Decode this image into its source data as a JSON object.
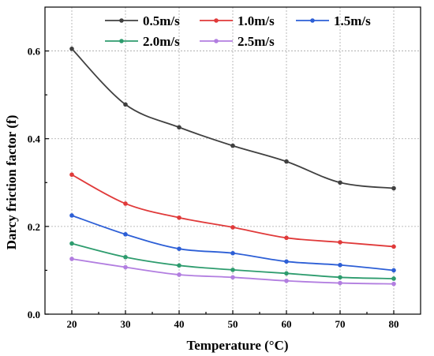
{
  "chart_data": {
    "type": "line",
    "title": "",
    "xlabel": "Temperature (°C)",
    "ylabel": "Darcy friction factor (f)",
    "x": [
      20,
      30,
      40,
      50,
      60,
      70,
      80
    ],
    "xlim": [
      15,
      85
    ],
    "ylim": [
      0,
      0.7
    ],
    "xticks": [
      20,
      30,
      40,
      50,
      60,
      70,
      80
    ],
    "yticks": [
      0.0,
      0.2,
      0.4,
      0.6
    ],
    "ytick_labels": [
      "0.0",
      "0.2",
      "0.4",
      "0.6"
    ],
    "grid": true,
    "legend_position": "top",
    "series": [
      {
        "name": "0.5m/s",
        "color": "#404040",
        "values": [
          0.605,
          0.478,
          0.426,
          0.384,
          0.348,
          0.3,
          0.287
        ]
      },
      {
        "name": "1.0m/s",
        "color": "#e03a3a",
        "values": [
          0.318,
          0.252,
          0.22,
          0.198,
          0.174,
          0.164,
          0.154
        ]
      },
      {
        "name": "1.5m/s",
        "color": "#2d5fd6",
        "values": [
          0.225,
          0.182,
          0.149,
          0.139,
          0.12,
          0.112,
          0.1
        ]
      },
      {
        "name": "2.0m/s",
        "color": "#2e9c6e",
        "values": [
          0.161,
          0.13,
          0.111,
          0.101,
          0.093,
          0.084,
          0.081
        ]
      },
      {
        "name": "2.5m/s",
        "color": "#b27ee0",
        "values": [
          0.126,
          0.107,
          0.09,
          0.084,
          0.076,
          0.071,
          0.069
        ]
      }
    ]
  }
}
